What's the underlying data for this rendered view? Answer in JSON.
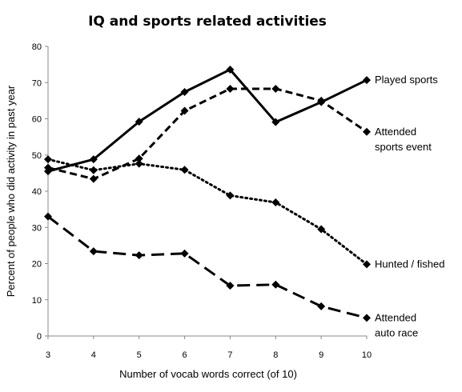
{
  "chart_data": {
    "type": "line",
    "title": "IQ and sports related activities",
    "xlabel": "Number of vocab words correct (of 10)",
    "ylabel": "Percent of people who did activity in past year",
    "x": [
      3,
      4,
      5,
      6,
      7,
      8,
      9,
      10
    ],
    "xlim": [
      3,
      10
    ],
    "ylim": [
      0,
      80
    ],
    "yticks": [
      0,
      10,
      20,
      30,
      40,
      50,
      60,
      70,
      80
    ],
    "grid": false,
    "legend": "none",
    "series": [
      {
        "name": "Played sports",
        "label_lines": [
          "Played sports"
        ],
        "dash": "solid",
        "values": [
          45.5,
          48.8,
          59.2,
          67.4,
          73.6,
          59.1,
          64.6,
          70.7
        ]
      },
      {
        "name": "Attended sports event",
        "label_lines": [
          "Attended",
          "sports event"
        ],
        "dash": "dashed",
        "values": [
          46.5,
          43.4,
          49.0,
          62.2,
          68.3,
          68.3,
          65.0,
          56.4
        ]
      },
      {
        "name": "Hunted / fished",
        "label_lines": [
          "Hunted / fished"
        ],
        "dash": "dotted",
        "values": [
          48.8,
          45.8,
          47.6,
          45.9,
          38.8,
          36.9,
          29.5,
          19.8
        ]
      },
      {
        "name": "Attended auto race",
        "label_lines": [
          "Attended",
          "auto race"
        ],
        "dash": "longdash",
        "values": [
          33.0,
          23.4,
          22.3,
          22.8,
          13.9,
          14.2,
          8.2,
          5.0
        ]
      }
    ]
  }
}
